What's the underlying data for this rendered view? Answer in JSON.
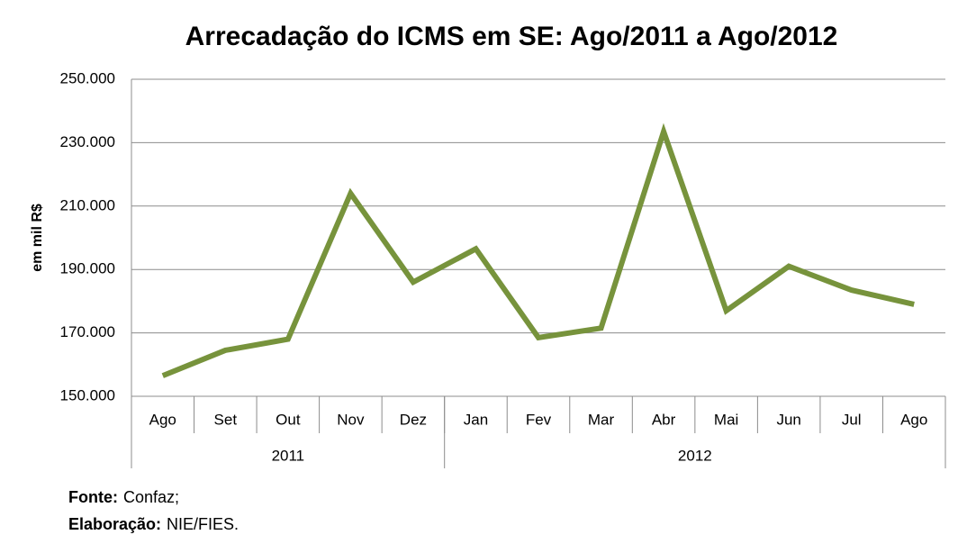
{
  "chart_data": {
    "type": "line",
    "title": "Arrecadação do ICMS em SE: Ago/2011 a Ago/2012",
    "y_label": "em mil R$",
    "categories": [
      "Ago",
      "Set",
      "Out",
      "Nov",
      "Dez",
      "Jan",
      "Fev",
      "Mar",
      "Abr",
      "Mai",
      "Jun",
      "Jul",
      "Ago"
    ],
    "groups": [
      {
        "label": "2011",
        "count": 5
      },
      {
        "label": "2012",
        "count": 8
      }
    ],
    "series": [
      {
        "name": "ICMS",
        "color": "#77933c",
        "values": [
          156500,
          164500,
          168000,
          214000,
          186000,
          196500,
          168500,
          171500,
          233500,
          177000,
          191000,
          183500,
          179000
        ]
      }
    ],
    "ylim": [
      150000,
      250000
    ],
    "yticks": [
      {
        "value": 150000,
        "label": "150.000"
      },
      {
        "value": 170000,
        "label": "170.000"
      },
      {
        "value": 190000,
        "label": "190.000"
      },
      {
        "value": 210000,
        "label": "210.000"
      },
      {
        "value": 230000,
        "label": "230.000"
      },
      {
        "value": 250000,
        "label": "250.000"
      }
    ],
    "grid": true,
    "notes": [
      {
        "label": "Fonte:",
        "text": "Confaz;"
      },
      {
        "label": "Elaboração:",
        "text": "NIE/FIES."
      }
    ]
  }
}
